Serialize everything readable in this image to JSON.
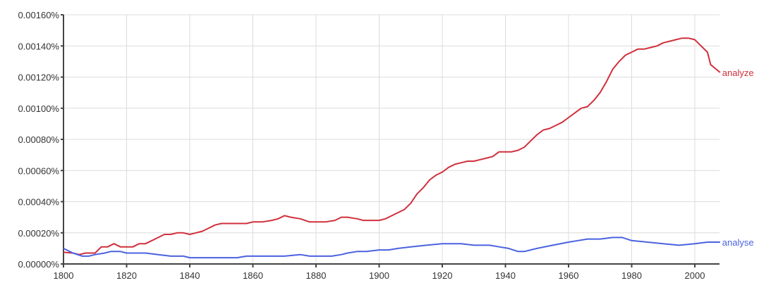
{
  "chart_data": {
    "type": "line",
    "title": "",
    "xlabel": "",
    "ylabel": "",
    "xlim": [
      1800,
      2008
    ],
    "ylim": [
      0,
      0.0016
    ],
    "grid": true,
    "legend": "inline-right",
    "x_ticks": [
      "1800",
      "1820",
      "1840",
      "1860",
      "1880",
      "1900",
      "1920",
      "1940",
      "1960",
      "1980",
      "2000"
    ],
    "y_ticks": [
      "0.00000%",
      "0.00020%",
      "0.00040%",
      "0.00060%",
      "0.00080%",
      "0.00100%",
      "0.00120%",
      "0.00140%",
      "0.00160%"
    ],
    "series": [
      {
        "name": "analyze",
        "color": "#d0303c",
        "x": [
          1800,
          1803,
          1805,
          1807,
          1810,
          1812,
          1814,
          1816,
          1818,
          1820,
          1822,
          1824,
          1826,
          1828,
          1830,
          1832,
          1834,
          1836,
          1838,
          1840,
          1842,
          1844,
          1846,
          1848,
          1850,
          1852,
          1855,
          1858,
          1860,
          1863,
          1866,
          1868,
          1870,
          1872,
          1875,
          1878,
          1880,
          1883,
          1886,
          1888,
          1890,
          1893,
          1895,
          1898,
          1900,
          1902,
          1904,
          1906,
          1908,
          1910,
          1912,
          1914,
          1916,
          1918,
          1920,
          1922,
          1924,
          1926,
          1928,
          1930,
          1932,
          1934,
          1936,
          1938,
          1940,
          1942,
          1944,
          1946,
          1948,
          1950,
          1952,
          1954,
          1956,
          1958,
          1960,
          1962,
          1964,
          1966,
          1968,
          1970,
          1972,
          1974,
          1976,
          1978,
          1980,
          1982,
          1984,
          1986,
          1988,
          1990,
          1992,
          1994,
          1996,
          1998,
          2000,
          2002,
          2004,
          2005,
          2008
        ],
        "y": [
          7.5e-05,
          7e-05,
          6e-05,
          7e-05,
          7e-05,
          0.00011,
          0.00011,
          0.00013,
          0.00011,
          0.00011,
          0.00011,
          0.00013,
          0.00013,
          0.00015,
          0.00017,
          0.00019,
          0.00019,
          0.0002,
          0.0002,
          0.00019,
          0.0002,
          0.00021,
          0.00023,
          0.00025,
          0.00026,
          0.00026,
          0.00026,
          0.00026,
          0.00027,
          0.00027,
          0.00028,
          0.00029,
          0.00031,
          0.0003,
          0.00029,
          0.00027,
          0.00027,
          0.00027,
          0.00028,
          0.0003,
          0.0003,
          0.00029,
          0.00028,
          0.00028,
          0.00028,
          0.00029,
          0.00031,
          0.00033,
          0.00035,
          0.00039,
          0.00045,
          0.00049,
          0.00054,
          0.00057,
          0.00059,
          0.00062,
          0.00064,
          0.00065,
          0.00066,
          0.00066,
          0.00067,
          0.00068,
          0.00069,
          0.00072,
          0.00072,
          0.00072,
          0.00073,
          0.00075,
          0.00079,
          0.00083,
          0.00086,
          0.00087,
          0.00089,
          0.00091,
          0.00094,
          0.00097,
          0.001,
          0.00101,
          0.00105,
          0.0011,
          0.00117,
          0.00125,
          0.0013,
          0.00134,
          0.00136,
          0.00138,
          0.00138,
          0.00139,
          0.0014,
          0.00142,
          0.00143,
          0.00144,
          0.00145,
          0.00145,
          0.00144,
          0.0014,
          0.00136,
          0.00128,
          0.00123
        ]
      },
      {
        "name": "analyse",
        "color": "#4a62e0",
        "x": [
          1800,
          1803,
          1806,
          1808,
          1810,
          1813,
          1815,
          1818,
          1820,
          1823,
          1826,
          1830,
          1834,
          1838,
          1840,
          1845,
          1850,
          1855,
          1858,
          1862,
          1866,
          1870,
          1875,
          1878,
          1880,
          1885,
          1888,
          1890,
          1893,
          1896,
          1900,
          1903,
          1906,
          1910,
          1915,
          1920,
          1923,
          1926,
          1930,
          1935,
          1938,
          1941,
          1944,
          1946,
          1950,
          1955,
          1960,
          1963,
          1966,
          1970,
          1974,
          1977,
          1980,
          1985,
          1990,
          1995,
          2000,
          2004,
          2008
        ],
        "y": [
          0.0001,
          7e-05,
          5e-05,
          5e-05,
          6e-05,
          7e-05,
          8e-05,
          8e-05,
          7e-05,
          7e-05,
          7e-05,
          6e-05,
          5e-05,
          5e-05,
          4e-05,
          4e-05,
          4e-05,
          4e-05,
          5e-05,
          5e-05,
          5e-05,
          5e-05,
          6e-05,
          5e-05,
          5e-05,
          5e-05,
          6e-05,
          7e-05,
          8e-05,
          8e-05,
          9e-05,
          9e-05,
          0.0001,
          0.00011,
          0.00012,
          0.00013,
          0.00013,
          0.00013,
          0.00012,
          0.00012,
          0.00011,
          0.0001,
          8e-05,
          8e-05,
          0.0001,
          0.00012,
          0.00014,
          0.00015,
          0.00016,
          0.00016,
          0.00017,
          0.00017,
          0.00015,
          0.00014,
          0.00013,
          0.00012,
          0.00013,
          0.00014,
          0.00014
        ]
      }
    ]
  }
}
